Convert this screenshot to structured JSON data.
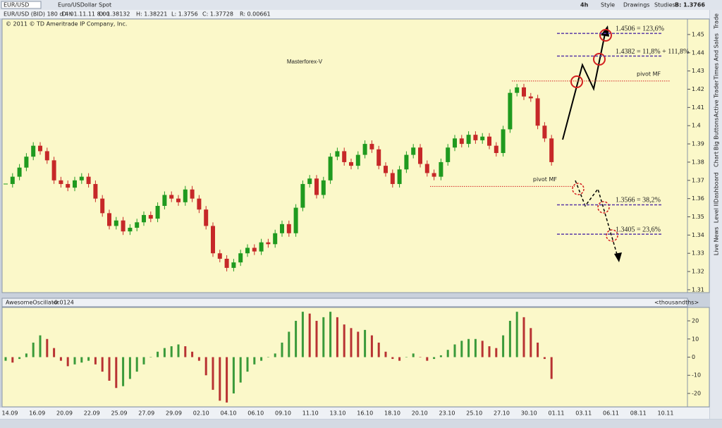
{
  "toolbar": {
    "symbol": "EUR/USD",
    "description": "Euro/USDollar Spot",
    "timeframe": "4h",
    "buttons": [
      "Style",
      "Drawings",
      "Studies"
    ],
    "quote": "B: 1.3766"
  },
  "info_bar": [
    "EUR/USD (BID) 180 d 4h",
    "D: 01.11.11 8:00",
    "O: 1.38132",
    "H: 1.38221",
    "L: 1.3756",
    "C: 1.37728",
    "R: 0.00661"
  ],
  "sidebar": [
    "Trade",
    "Times And Sales",
    "Active Trader",
    "Big Buttons",
    "Chart",
    "Dashboard",
    "Level II",
    "Live News"
  ],
  "time_axis": [
    "14.09",
    "16.09",
    "20.09",
    "22.09",
    "25.09",
    "27.09",
    "29.09",
    "02.10",
    "04.10",
    "06.10",
    "09.10",
    "11.10",
    "13.10",
    "16.10",
    "18.10",
    "20.10",
    "23.10",
    "25.10",
    "27.10",
    "30.10",
    "01.11",
    "03.11",
    "06.11",
    "08.11",
    "10.11"
  ],
  "chart_data": [
    {
      "type": "candlestick",
      "copyright": "© 2011 © TD Ameritrade IP Company, Inc.",
      "title": "Masterforex-V",
      "closes": [
        1.368,
        1.372,
        1.377,
        1.383,
        1.389,
        1.386,
        1.381,
        1.37,
        1.368,
        1.366,
        1.37,
        1.372,
        1.368,
        1.36,
        1.352,
        1.345,
        1.348,
        1.342,
        1.344,
        1.347,
        1.351,
        1.349,
        1.356,
        1.362,
        1.36,
        1.358,
        1.365,
        1.36,
        1.354,
        1.345,
        1.33,
        1.327,
        1.322,
        1.325,
        1.33,
        1.333,
        1.331,
        1.336,
        1.335,
        1.341,
        1.346,
        1.341,
        1.355,
        1.368,
        1.371,
        1.362,
        1.37,
        1.383,
        1.386,
        1.38,
        1.378,
        1.384,
        1.39,
        1.387,
        1.378,
        1.374,
        1.368,
        1.376,
        1.384,
        1.388,
        1.379,
        1.374,
        1.372,
        1.38,
        1.388,
        1.393,
        1.39,
        1.395,
        1.392,
        1.394,
        1.389,
        1.385,
        1.398,
        1.418,
        1.421,
        1.416,
        1.415,
        1.4,
        1.393,
        1.38
      ],
      "up_color": "#1f9a1f",
      "down_color": "#c62828",
      "ylim": [
        1.3092,
        1.4581
      ],
      "yticks": [
        1.31,
        1.32,
        1.33,
        1.34,
        1.35,
        1.36,
        1.37,
        1.38,
        1.39,
        1.4,
        1.41,
        1.42,
        1.43,
        1.44,
        1.45
      ],
      "pivots": [
        {
          "label": "pivot MF",
          "price": 1.4245
        },
        {
          "label": "pivot MF",
          "price": 1.3667
        }
      ],
      "levels": [
        {
          "label": "1.4506 = 123,6%",
          "price": 1.4506
        },
        {
          "label": "1.4382 = 11,8% + 111,8%",
          "price": 1.4382
        },
        {
          "label": "1.3566 = 38,2%",
          "price": 1.3566
        },
        {
          "label": "1.3405 = 23,6%",
          "price": 1.3405
        }
      ]
    },
    {
      "type": "bar",
      "title": "AwesomeOscillator",
      "value_label": "-0.0124",
      "units": "<thousandths>",
      "values": [
        -2,
        -3,
        -1,
        2,
        8,
        12,
        10,
        5,
        -2,
        -5,
        -4,
        -3,
        -2,
        -4,
        -8,
        -13,
        -17,
        -16,
        -12,
        -8,
        -4,
        0,
        3,
        5,
        6,
        7,
        6,
        3,
        -2,
        -10,
        -18,
        -24,
        -25,
        -20,
        -14,
        -8,
        -4,
        -2,
        0,
        2,
        8,
        14,
        20,
        25,
        24,
        20,
        22,
        25,
        22,
        18,
        16,
        14,
        15,
        12,
        8,
        3,
        -1,
        -2,
        0,
        2,
        0,
        -2,
        -1,
        1,
        4,
        7,
        9,
        10,
        10,
        9,
        6,
        5,
        12,
        20,
        25,
        22,
        16,
        8,
        -1,
        -12
      ],
      "up_color": "#3a9a3a",
      "down_color": "#b83232",
      "ylim": [
        -27,
        27
      ],
      "yticks": [
        20,
        10,
        0,
        -10,
        -20
      ]
    }
  ]
}
